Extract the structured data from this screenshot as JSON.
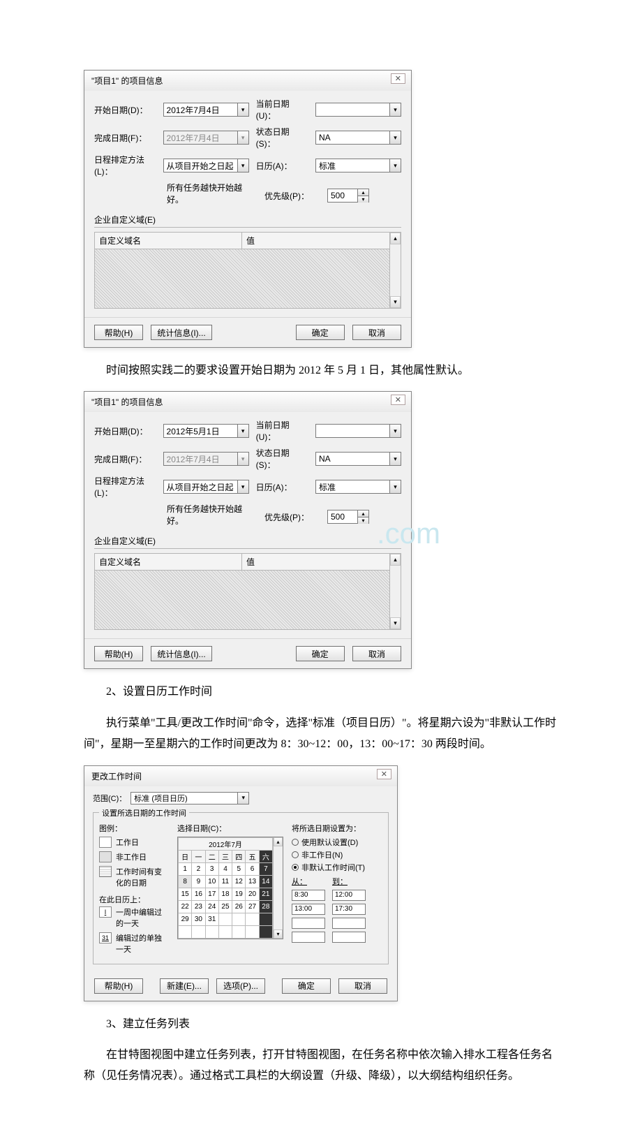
{
  "dialog1": {
    "title": "\"项目1\" 的项目信息",
    "labels": {
      "start_date": "开始日期(D)：",
      "finish_date": "完成日期(F)：",
      "schedule_method": "日程排定方法(L)：",
      "note": "所有任务越快开始越好。",
      "ent_custom": "企业自定义域(E)",
      "custom_name": "自定义域名",
      "value": "值",
      "current_date": "当前日期(U)：",
      "status_date": "状态日期(S)：",
      "calendar": "日历(A)：",
      "priority": "优先级(P)："
    },
    "values": {
      "start_date": "2012年7月4日",
      "finish_date": "2012年7月4日",
      "schedule_method": "从项目开始之日起",
      "status_date": "NA",
      "calendar": "标准",
      "priority": "500"
    },
    "buttons": {
      "help": "帮助(H)",
      "stats": "统计信息(I)...",
      "ok": "确定",
      "cancel": "取消"
    }
  },
  "para1": "时间按照实践二的要求设置开始日期为 2012 年 5 月 1 日，其他属性默认。",
  "dialog2": {
    "title": "\"项目1\" 的项目信息",
    "values": {
      "start_date": "2012年5月1日",
      "finish_date": "2012年7月4日",
      "schedule_method": "从项目开始之日起",
      "status_date": "NA",
      "calendar": "标准",
      "priority": "500"
    }
  },
  "watermark": ".com",
  "para2": "2、设置日历工作时间",
  "para3": "执行菜单\"工具/更改工作时间\"命令，选择\"标准（项目日历）\"。将星期六设为\"非默认工作时间\"，星期一至星期六的工作时间更改为 8：30~12：00，13：00~17：30 两段时间。",
  "wt": {
    "title": "更改工作时间",
    "scope_label": "范围(C)：",
    "scope_value": "标准 (项目日历)",
    "set_label": "设置所选日期的工作时间",
    "legend_title": "图例：",
    "legend": {
      "workday": "工作日",
      "nonworkday": "非工作日",
      "changed": "工作时间有变化的日期",
      "in_this_cal": "在此日历上：",
      "edited_week": "一周中编辑过的一天",
      "edited_single": "编辑过的单独一天",
      "edited_week_num": "I",
      "edited_single_num": "31"
    },
    "select_date": "选择日期(C)：",
    "month_title": "2012年7月",
    "dow": [
      "日",
      "一",
      "二",
      "三",
      "四",
      "五",
      "六"
    ],
    "weeks": [
      [
        "1",
        "2",
        "3",
        "4",
        "5",
        "6",
        "7"
      ],
      [
        "8",
        "9",
        "10",
        "11",
        "12",
        "13",
        "14"
      ],
      [
        "15",
        "16",
        "17",
        "18",
        "19",
        "20",
        "21"
      ],
      [
        "22",
        "23",
        "24",
        "25",
        "26",
        "27",
        "28"
      ],
      [
        "29",
        "30",
        "31",
        "",
        "",
        "",
        ""
      ]
    ],
    "right": {
      "header": "将所选日期设置为：",
      "use_default": "使用默认设置(D)",
      "non_workday": "非工作日(N)",
      "non_default_wt": "非默认工作时间(T)",
      "from": "从：",
      "to": "到：",
      "times_from": [
        "8:30",
        "13:00",
        "",
        ""
      ],
      "times_to": [
        "12:00",
        "17:30",
        "",
        ""
      ]
    },
    "buttons": {
      "help": "帮助(H)",
      "new": "新建(E)...",
      "options": "选项(P)...",
      "ok": "确定",
      "cancel": "取消"
    }
  },
  "para4": "3、建立任务列表",
  "para5": "在甘特图视图中建立任务列表，打开甘特图视图，在任务名称中依次输入排水工程各任务名称（见任务情况表）。通过格式工具栏的大纲设置（升级、降级），以大纲结构组织任务。"
}
